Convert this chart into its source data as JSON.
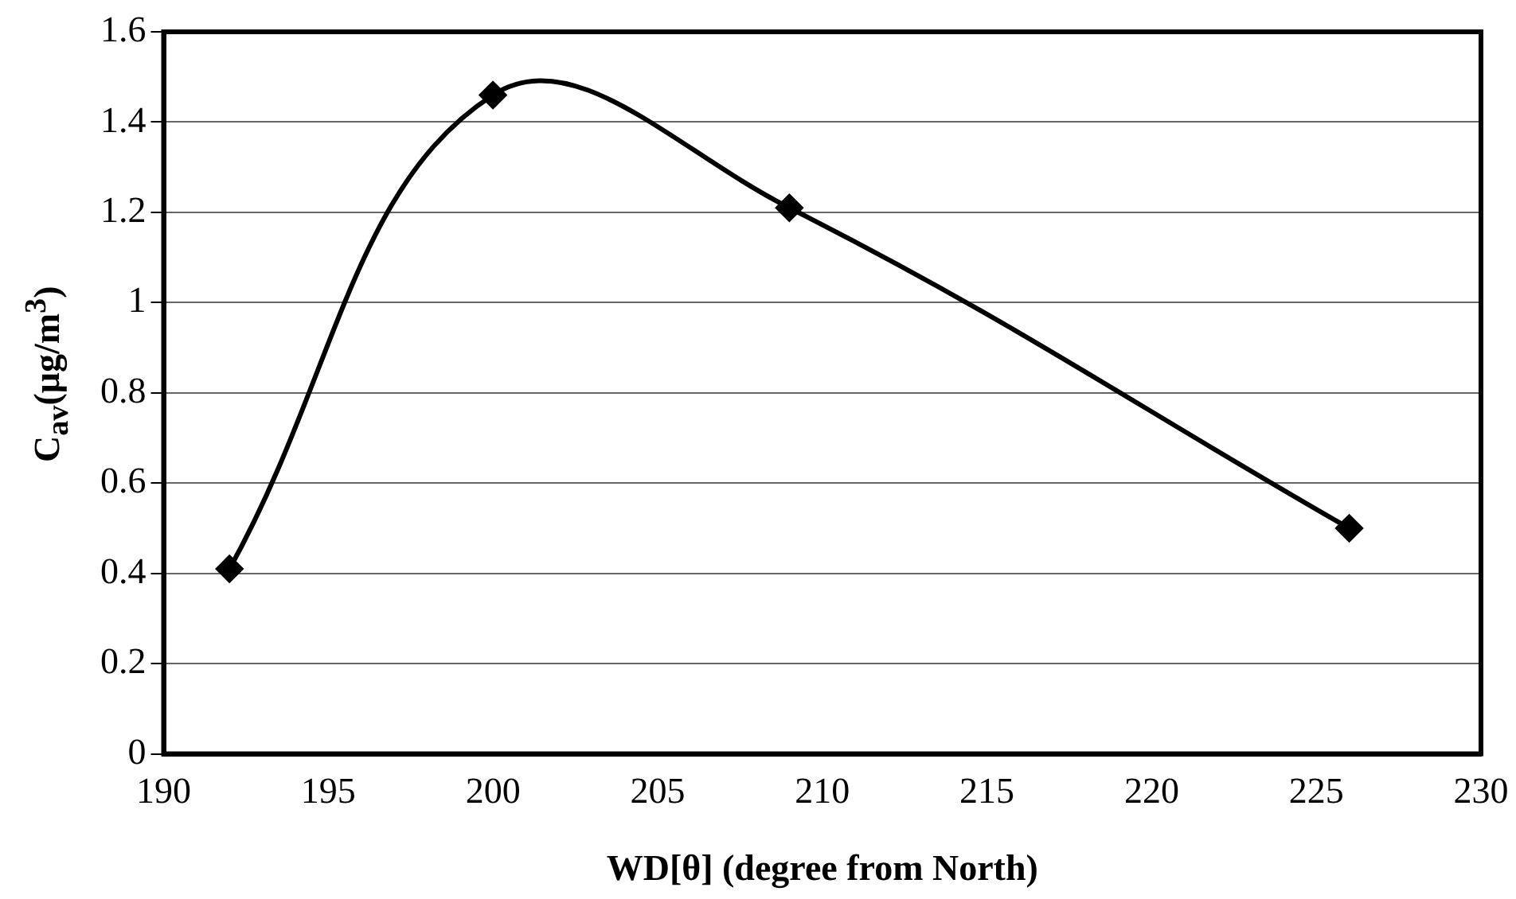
{
  "chart_data": {
    "type": "line",
    "xlabel": "WD[θ] (degree from North)",
    "ylabel": "C$_{av}$(μg/m$^{3}$)",
    "x": [
      192,
      200,
      209,
      226
    ],
    "series": [
      {
        "color": "#000000",
        "values": [
          0.41,
          1.46,
          1.21,
          0.5
        ]
      }
    ],
    "xlim": [
      190,
      230
    ],
    "xticks": [
      190,
      195,
      200,
      205,
      210,
      215,
      220,
      225,
      230
    ],
    "ylim": [
      0,
      1.6
    ],
    "yticks": [
      0,
      0.2,
      0.4,
      0.6,
      0.8,
      1,
      1.2,
      1.4,
      1.6
    ],
    "grid": "y",
    "legend": false,
    "marker": "diamond",
    "line_style": "solid"
  }
}
